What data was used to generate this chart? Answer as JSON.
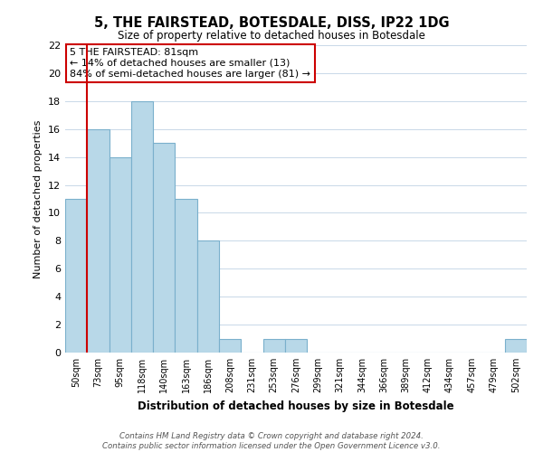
{
  "title": "5, THE FAIRSTEAD, BOTESDALE, DISS, IP22 1DG",
  "subtitle": "Size of property relative to detached houses in Botesdale",
  "xlabel": "Distribution of detached houses by size in Botesdale",
  "ylabel": "Number of detached properties",
  "bin_labels": [
    "50sqm",
    "73sqm",
    "95sqm",
    "118sqm",
    "140sqm",
    "163sqm",
    "186sqm",
    "208sqm",
    "231sqm",
    "253sqm",
    "276sqm",
    "299sqm",
    "321sqm",
    "344sqm",
    "366sqm",
    "389sqm",
    "412sqm",
    "434sqm",
    "457sqm",
    "479sqm",
    "502sqm"
  ],
  "bar_heights": [
    11,
    16,
    14,
    18,
    15,
    11,
    8,
    1,
    0,
    1,
    1,
    0,
    0,
    0,
    0,
    0,
    0,
    0,
    0,
    0,
    1
  ],
  "bar_color": "#b8d8e8",
  "bar_edge_color": "#7ab0cc",
  "subject_line_color": "#cc0000",
  "ylim": [
    0,
    22
  ],
  "yticks": [
    0,
    2,
    4,
    6,
    8,
    10,
    12,
    14,
    16,
    18,
    20,
    22
  ],
  "annotation_title": "5 THE FAIRSTEAD: 81sqm",
  "annotation_line1": "← 14% of detached houses are smaller (13)",
  "annotation_line2": "84% of semi-detached houses are larger (81) →",
  "footer_line1": "Contains HM Land Registry data © Crown copyright and database right 2024.",
  "footer_line2": "Contains public sector information licensed under the Open Government Licence v3.0.",
  "background_color": "#ffffff",
  "grid_color": "#c8d8e8"
}
